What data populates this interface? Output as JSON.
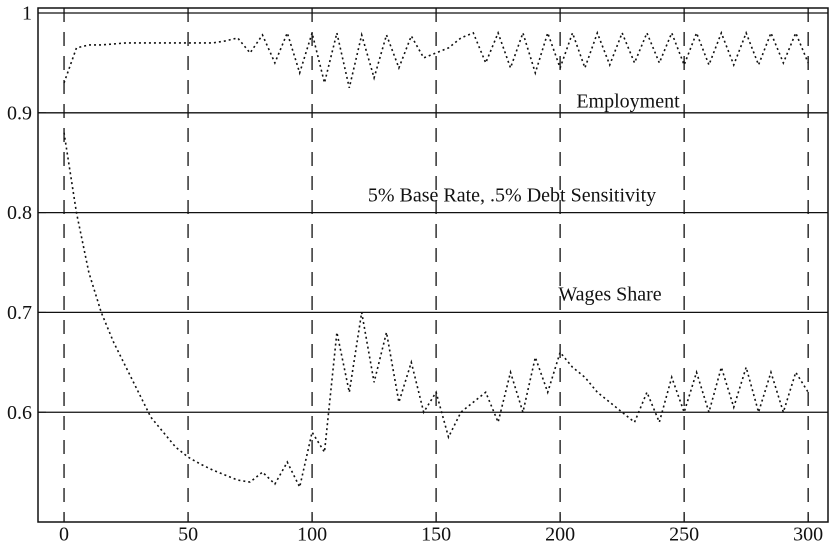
{
  "chart_data": {
    "type": "line",
    "annotations": [
      "Employment",
      "5% Base Rate, .5% Debt Sensitivity",
      "Wages Share"
    ],
    "x": [
      0,
      5,
      10,
      15,
      20,
      25,
      30,
      35,
      40,
      45,
      50,
      55,
      60,
      65,
      70,
      75,
      80,
      85,
      90,
      95,
      100,
      105,
      110,
      115,
      120,
      125,
      130,
      135,
      140,
      145,
      150,
      155,
      160,
      165,
      170,
      175,
      180,
      185,
      190,
      195,
      200,
      205,
      210,
      215,
      220,
      225,
      230,
      235,
      240,
      245,
      250,
      255,
      260,
      265,
      270,
      275,
      280,
      285,
      290,
      295,
      300
    ],
    "series": [
      {
        "name": "Employment",
        "color": "#111111",
        "values": [
          0.93,
          0.965,
          0.968,
          0.968,
          0.969,
          0.97,
          0.97,
          0.97,
          0.97,
          0.97,
          0.97,
          0.97,
          0.97,
          0.972,
          0.975,
          0.96,
          0.978,
          0.95,
          0.98,
          0.94,
          0.98,
          0.93,
          0.98,
          0.925,
          0.978,
          0.935,
          0.978,
          0.945,
          0.977,
          0.955,
          0.96,
          0.965,
          0.975,
          0.98,
          0.95,
          0.98,
          0.945,
          0.98,
          0.94,
          0.98,
          0.945,
          0.98,
          0.945,
          0.98,
          0.948,
          0.98,
          0.95,
          0.98,
          0.95,
          0.98,
          0.948,
          0.98,
          0.948,
          0.98,
          0.948,
          0.98,
          0.948,
          0.98,
          0.95,
          0.98,
          0.95
        ]
      },
      {
        "name": "Wages Share",
        "color": "#111111",
        "values": [
          0.88,
          0.8,
          0.74,
          0.7,
          0.67,
          0.645,
          0.62,
          0.595,
          0.58,
          0.565,
          0.555,
          0.548,
          0.542,
          0.537,
          0.532,
          0.53,
          0.54,
          0.528,
          0.55,
          0.525,
          0.58,
          0.56,
          0.68,
          0.62,
          0.7,
          0.63,
          0.68,
          0.61,
          0.65,
          0.6,
          0.62,
          0.575,
          0.6,
          0.61,
          0.62,
          0.59,
          0.64,
          0.6,
          0.655,
          0.62,
          0.66,
          0.645,
          0.635,
          0.62,
          0.61,
          0.6,
          0.59,
          0.62,
          0.59,
          0.635,
          0.6,
          0.64,
          0.6,
          0.645,
          0.605,
          0.645,
          0.6,
          0.64,
          0.6,
          0.64,
          0.62
        ]
      }
    ],
    "xlim": [
      -10.5,
      308
    ],
    "ylim": [
      0.49,
      1.005
    ],
    "xticks": [
      0,
      50,
      100,
      150,
      200,
      250,
      300
    ],
    "yticks": [
      0.6,
      0.7,
      0.8,
      0.9,
      1
    ],
    "grid": true
  }
}
